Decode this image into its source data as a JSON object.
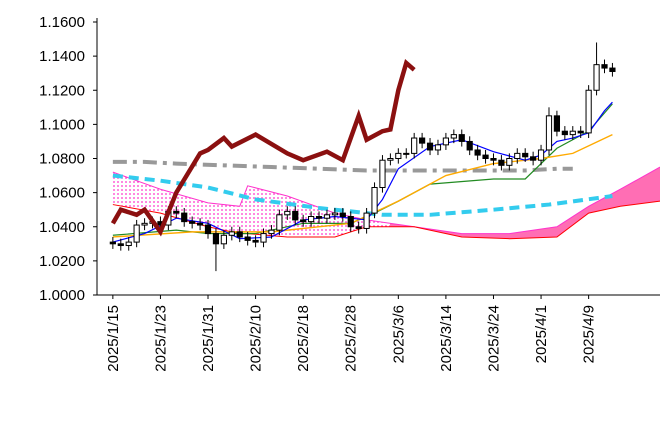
{
  "chart_data": {
    "type": "candlestick",
    "xlim": [
      -2,
      69
    ],
    "xticks": [
      {
        "value": 0,
        "label": "2025/1/15"
      },
      {
        "value": 6,
        "label": "2025/1/23"
      },
      {
        "value": 12,
        "label": "2025/1/31"
      },
      {
        "value": 18,
        "label": "2025/2/10"
      },
      {
        "value": 24,
        "label": "2025/2/18"
      },
      {
        "value": 30,
        "label": "2025/2/28"
      },
      {
        "value": 36,
        "label": "2025/3/6"
      },
      {
        "value": 42,
        "label": "2025/3/14"
      },
      {
        "value": 48,
        "label": "2025/3/24"
      },
      {
        "value": 54,
        "label": "2025/4/1"
      },
      {
        "value": 60,
        "label": "2025/4/9"
      }
    ],
    "ylim": [
      1.0,
      1.16
    ],
    "yticks": [
      {
        "value": 1.0,
        "label": "1.0000"
      },
      {
        "value": 1.02,
        "label": "1.0200"
      },
      {
        "value": 1.04,
        "label": "1.0400"
      },
      {
        "value": 1.06,
        "label": "1.0600"
      },
      {
        "value": 1.08,
        "label": "1.0800"
      },
      {
        "value": 1.1,
        "label": "1.1000"
      },
      {
        "value": 1.12,
        "label": "1.1200"
      },
      {
        "value": 1.14,
        "label": "1.1400"
      },
      {
        "value": 1.16,
        "label": "1.1600"
      }
    ],
    "candles": {
      "up_color": "#ffffff",
      "down_color": "#000000",
      "open": [
        1.031,
        1.03,
        1.029,
        1.031,
        1.041,
        1.042,
        1.043,
        1.041,
        1.049,
        1.048,
        1.043,
        1.042,
        1.041,
        1.036,
        1.03,
        1.035,
        1.037,
        1.034,
        1.032,
        1.031,
        1.036,
        1.038,
        1.047,
        1.049,
        1.044,
        1.043,
        1.046,
        1.045,
        1.047,
        1.048,
        1.046,
        1.04,
        1.039,
        1.048,
        1.063,
        1.079,
        1.08,
        1.083,
        1.083,
        1.092,
        1.089,
        1.085,
        1.088,
        1.092,
        1.094,
        1.09,
        1.085,
        1.082,
        1.08,
        1.079,
        1.076,
        1.08,
        1.083,
        1.081,
        1.079,
        1.085,
        1.105,
        1.096,
        1.094,
        1.096,
        1.095,
        1.12,
        1.135,
        1.133
      ],
      "high": [
        1.034,
        1.033,
        1.034,
        1.044,
        1.045,
        1.046,
        1.046,
        1.052,
        1.052,
        1.051,
        1.046,
        1.045,
        1.044,
        1.039,
        1.038,
        1.04,
        1.04,
        1.037,
        1.035,
        1.039,
        1.041,
        1.05,
        1.052,
        1.052,
        1.047,
        1.049,
        1.049,
        1.05,
        1.051,
        1.051,
        1.049,
        1.043,
        1.051,
        1.066,
        1.082,
        1.083,
        1.086,
        1.086,
        1.095,
        1.095,
        1.092,
        1.091,
        1.095,
        1.097,
        1.097,
        1.093,
        1.088,
        1.085,
        1.083,
        1.082,
        1.083,
        1.086,
        1.086,
        1.084,
        1.088,
        1.11,
        1.108,
        1.099,
        1.099,
        1.099,
        1.123,
        1.148,
        1.138,
        1.136
      ],
      "low": [
        1.027,
        1.026,
        1.026,
        1.028,
        1.038,
        1.039,
        1.038,
        1.038,
        1.045,
        1.04,
        1.039,
        1.038,
        1.033,
        1.014,
        1.027,
        1.032,
        1.031,
        1.029,
        1.028,
        1.028,
        1.033,
        1.035,
        1.044,
        1.041,
        1.04,
        1.04,
        1.042,
        1.042,
        1.044,
        1.043,
        1.037,
        1.036,
        1.036,
        1.045,
        1.06,
        1.076,
        1.077,
        1.08,
        1.08,
        1.086,
        1.082,
        1.082,
        1.085,
        1.089,
        1.087,
        1.082,
        1.079,
        1.077,
        1.076,
        1.073,
        1.073,
        1.077,
        1.078,
        1.076,
        1.076,
        1.082,
        1.093,
        1.091,
        1.091,
        1.092,
        1.092,
        1.117,
        1.13,
        1.128
      ],
      "close": [
        1.03,
        1.029,
        1.031,
        1.041,
        1.042,
        1.043,
        1.041,
        1.049,
        1.048,
        1.043,
        1.042,
        1.041,
        1.036,
        1.03,
        1.035,
        1.037,
        1.034,
        1.032,
        1.031,
        1.036,
        1.038,
        1.047,
        1.049,
        1.044,
        1.043,
        1.046,
        1.045,
        1.047,
        1.048,
        1.046,
        1.04,
        1.039,
        1.048,
        1.063,
        1.079,
        1.08,
        1.083,
        1.083,
        1.092,
        1.089,
        1.085,
        1.088,
        1.092,
        1.094,
        1.09,
        1.085,
        1.082,
        1.08,
        1.079,
        1.076,
        1.08,
        1.083,
        1.081,
        1.079,
        1.085,
        1.105,
        1.096,
        1.094,
        1.096,
        1.095,
        1.12,
        1.135,
        1.133,
        1.131
      ]
    },
    "cloud": {
      "x": [
        0,
        6,
        12,
        16,
        17,
        22,
        28,
        32,
        38,
        44,
        50,
        56,
        60,
        64,
        69
      ],
      "span_a": [
        1.072,
        1.062,
        1.054,
        1.052,
        1.064,
        1.058,
        1.048,
        1.044,
        1.04,
        1.036,
        1.036,
        1.04,
        1.052,
        1.062,
        1.075
      ],
      "span_b": [
        1.053,
        1.048,
        1.04,
        1.036,
        1.036,
        1.034,
        1.034,
        1.04,
        1.04,
        1.034,
        1.033,
        1.034,
        1.048,
        1.052,
        1.055
      ],
      "span_a_color": "#ff33cc",
      "span_b_color": "#ff0000",
      "fill_color": "#ff6eb4"
    },
    "series": [
      {
        "color": "#999999",
        "width": 4,
        "dash": "14 6 4 6",
        "x": [
          0,
          4,
          8,
          14,
          20,
          26,
          32,
          40,
          48,
          52,
          56,
          58
        ],
        "values": [
          1.078,
          1.078,
          1.077,
          1.076,
          1.075,
          1.074,
          1.073,
          1.073,
          1.073,
          1.073,
          1.074,
          1.074
        ]
      },
      {
        "color": "#33ccee",
        "width": 4,
        "dash": "10 6",
        "x": [
          0,
          6,
          12,
          18,
          26,
          34,
          40,
          48,
          55,
          63
        ],
        "values": [
          1.07,
          1.067,
          1.063,
          1.056,
          1.051,
          1.047,
          1.047,
          1.05,
          1.053,
          1.058
        ]
      },
      {
        "color": "#228b22",
        "width": 1.2,
        "dash": "",
        "x": [
          0,
          8,
          12,
          18,
          24,
          30,
          33,
          36,
          40,
          48,
          52,
          56,
          60,
          63
        ],
        "values": [
          1.035,
          1.038,
          1.036,
          1.036,
          1.042,
          1.042,
          1.048,
          1.055,
          1.065,
          1.068,
          1.068,
          1.086,
          1.096,
          1.112
        ]
      },
      {
        "color": "#ffaa00",
        "width": 1.4,
        "dash": "",
        "x": [
          0,
          10,
          20,
          30,
          36,
          42,
          48,
          54,
          58,
          63
        ],
        "values": [
          1.034,
          1.037,
          1.037,
          1.042,
          1.055,
          1.07,
          1.077,
          1.08,
          1.083,
          1.094
        ]
      },
      {
        "color": "#0000ff",
        "width": 1.2,
        "dash": "",
        "x": [
          0,
          4,
          8,
          12,
          16,
          20,
          24,
          28,
          32,
          34,
          36,
          40,
          44,
          48,
          52,
          54,
          56,
          58,
          60,
          62,
          63
        ],
        "values": [
          1.031,
          1.036,
          1.045,
          1.042,
          1.033,
          1.034,
          1.044,
          1.046,
          1.044,
          1.056,
          1.074,
          1.087,
          1.091,
          1.084,
          1.079,
          1.082,
          1.09,
          1.092,
          1.095,
          1.108,
          1.113
        ]
      },
      {
        "color": "#8b1010",
        "width": 4.5,
        "dash": "",
        "x": [
          0,
          1,
          3,
          4,
          6,
          8,
          11,
          12,
          14,
          15,
          18,
          22,
          24,
          27,
          29,
          31,
          32,
          34,
          35,
          36,
          37,
          38
        ],
        "values": [
          1.042,
          1.05,
          1.047,
          1.05,
          1.037,
          1.06,
          1.083,
          1.085,
          1.092,
          1.087,
          1.094,
          1.083,
          1.079,
          1.084,
          1.079,
          1.105,
          1.091,
          1.096,
          1.097,
          1.12,
          1.136,
          1.132
        ]
      }
    ]
  }
}
